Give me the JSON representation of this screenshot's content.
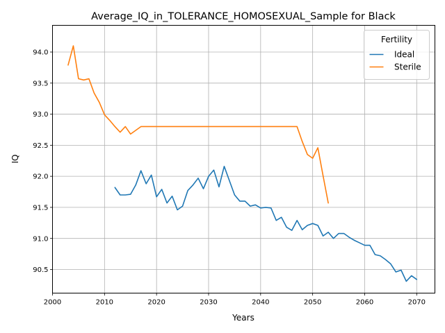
{
  "chart_data": {
    "type": "line",
    "title": "Average_IQ_in_TOLERANCE_HOMOSEXUAL_Sample for Black",
    "xlabel": "Years",
    "ylabel": "IQ",
    "xlim": [
      2000,
      2073.5
    ],
    "ylim": [
      90.12,
      94.43
    ],
    "x_ticks": [
      2000,
      2010,
      2020,
      2030,
      2040,
      2050,
      2060,
      2070
    ],
    "y_ticks": [
      90.5,
      91.0,
      91.5,
      92.0,
      92.5,
      93.0,
      93.5,
      94.0
    ],
    "grid": true,
    "legend": {
      "title": "Fertility",
      "placement": "top-right"
    },
    "series": [
      {
        "name": "Ideal",
        "color": "#1f77b4",
        "x": [
          2012,
          2013,
          2014,
          2015,
          2016,
          2017,
          2018,
          2019,
          2020,
          2021,
          2022,
          2023,
          2024,
          2025,
          2026,
          2027,
          2028,
          2029,
          2030,
          2031,
          2032,
          2033,
          2034,
          2035,
          2036,
          2037,
          2038,
          2039,
          2040,
          2041,
          2042,
          2043,
          2044,
          2045,
          2046,
          2047,
          2048,
          2049,
          2050,
          2051,
          2052,
          2053,
          2054,
          2055,
          2056,
          2057,
          2058,
          2059,
          2060,
          2061,
          2062,
          2063,
          2064,
          2065,
          2066,
          2067,
          2068,
          2069,
          2070
        ],
        "values": [
          91.82,
          91.7,
          91.7,
          91.71,
          91.86,
          92.09,
          91.88,
          92.02,
          91.67,
          91.79,
          91.57,
          91.68,
          91.46,
          91.52,
          91.77,
          91.86,
          91.97,
          91.8,
          92.0,
          92.1,
          91.83,
          92.16,
          91.93,
          91.7,
          91.6,
          91.6,
          91.52,
          91.54,
          91.49,
          91.5,
          91.49,
          91.29,
          91.34,
          91.18,
          91.13,
          91.29,
          91.14,
          91.21,
          91.24,
          91.21,
          91.04,
          91.1,
          91.0,
          91.08,
          91.08,
          91.02,
          90.97,
          90.93,
          90.89,
          90.89,
          90.74,
          90.72,
          90.66,
          90.59,
          90.46,
          90.49,
          90.31,
          90.4,
          90.34
        ]
      },
      {
        "name": "Sterile",
        "color": "#ff7f0e",
        "x": [
          2003,
          2004,
          2005,
          2006,
          2007,
          2008,
          2009,
          2010,
          2011,
          2012,
          2013,
          2014,
          2015,
          2016,
          2017,
          2018,
          2019,
          2020,
          2021,
          2022,
          2023,
          2024,
          2025,
          2026,
          2027,
          2028,
          2029,
          2030,
          2031,
          2032,
          2033,
          2034,
          2035,
          2036,
          2037,
          2038,
          2039,
          2040,
          2041,
          2042,
          2043,
          2044,
          2045,
          2046,
          2047,
          2048,
          2049,
          2050,
          2051,
          2052,
          2053
        ],
        "values": [
          93.79,
          94.1,
          93.57,
          93.55,
          93.57,
          93.34,
          93.19,
          92.99,
          92.9,
          92.8,
          92.71,
          92.8,
          92.68,
          92.74,
          92.8,
          92.8,
          92.8,
          92.8,
          92.8,
          92.8,
          92.8,
          92.8,
          92.8,
          92.8,
          92.8,
          92.8,
          92.8,
          92.8,
          92.8,
          92.8,
          92.8,
          92.8,
          92.8,
          92.8,
          92.8,
          92.8,
          92.8,
          92.8,
          92.8,
          92.8,
          92.8,
          92.8,
          92.8,
          92.8,
          92.8,
          92.56,
          92.35,
          92.29,
          92.46,
          92.01,
          91.57
        ]
      }
    ]
  }
}
